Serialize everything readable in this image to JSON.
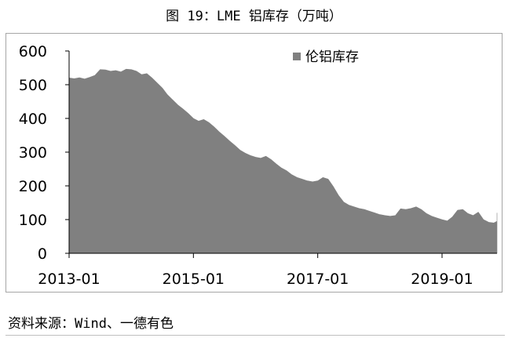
{
  "title": "图 19：LME 铝库存（万吨）",
  "source": "资料来源：Wind、一德有色",
  "chart_data": {
    "type": "area",
    "ylim": [
      0,
      600
    ],
    "yticks": [
      "0",
      "100",
      "200",
      "300",
      "400",
      "500",
      "600"
    ],
    "xtick_labels": [
      "2013-01",
      "2015-01",
      "2017-01",
      "2019-01"
    ],
    "xlim": [
      "2013-01",
      "2019-10"
    ],
    "grid": false,
    "legend_position": "top-right",
    "series": [
      {
        "name": "伦铝库存",
        "color": "#808080",
        "points": [
          [
            "2013-01",
            520
          ],
          [
            "2013-02",
            518
          ],
          [
            "2013-03",
            521
          ],
          [
            "2013-04",
            517
          ],
          [
            "2013-05",
            522
          ],
          [
            "2013-06",
            528
          ],
          [
            "2013-07",
            545
          ],
          [
            "2013-08",
            544
          ],
          [
            "2013-09",
            540
          ],
          [
            "2013-10",
            542
          ],
          [
            "2013-11",
            538
          ],
          [
            "2013-12",
            546
          ],
          [
            "2014-01",
            545
          ],
          [
            "2014-02",
            540
          ],
          [
            "2014-03",
            530
          ],
          [
            "2014-04",
            533
          ],
          [
            "2014-05",
            520
          ],
          [
            "2014-06",
            505
          ],
          [
            "2014-07",
            490
          ],
          [
            "2014-08",
            470
          ],
          [
            "2014-09",
            455
          ],
          [
            "2014-10",
            440
          ],
          [
            "2014-11",
            428
          ],
          [
            "2014-12",
            415
          ],
          [
            "2015-01",
            400
          ],
          [
            "2015-02",
            392
          ],
          [
            "2015-03",
            397
          ],
          [
            "2015-04",
            388
          ],
          [
            "2015-05",
            375
          ],
          [
            "2015-06",
            360
          ],
          [
            "2015-07",
            347
          ],
          [
            "2015-08",
            333
          ],
          [
            "2015-09",
            320
          ],
          [
            "2015-10",
            306
          ],
          [
            "2015-11",
            297
          ],
          [
            "2015-12",
            290
          ],
          [
            "2016-01",
            285
          ],
          [
            "2016-02",
            282
          ],
          [
            "2016-03",
            288
          ],
          [
            "2016-04",
            278
          ],
          [
            "2016-05",
            265
          ],
          [
            "2016-06",
            253
          ],
          [
            "2016-07",
            245
          ],
          [
            "2016-08",
            233
          ],
          [
            "2016-09",
            225
          ],
          [
            "2016-10",
            220
          ],
          [
            "2016-11",
            215
          ],
          [
            "2016-12",
            212
          ],
          [
            "2017-01",
            215
          ],
          [
            "2017-02",
            225
          ],
          [
            "2017-03",
            220
          ],
          [
            "2017-04",
            198
          ],
          [
            "2017-05",
            172
          ],
          [
            "2017-06",
            152
          ],
          [
            "2017-07",
            143
          ],
          [
            "2017-08",
            138
          ],
          [
            "2017-09",
            133
          ],
          [
            "2017-10",
            130
          ],
          [
            "2017-11",
            125
          ],
          [
            "2017-12",
            120
          ],
          [
            "2018-01",
            115
          ],
          [
            "2018-02",
            112
          ],
          [
            "2018-03",
            110
          ],
          [
            "2018-04",
            112
          ],
          [
            "2018-05",
            132
          ],
          [
            "2018-06",
            130
          ],
          [
            "2018-07",
            133
          ],
          [
            "2018-08",
            138
          ],
          [
            "2018-09",
            130
          ],
          [
            "2018-10",
            118
          ],
          [
            "2018-11",
            110
          ],
          [
            "2018-12",
            105
          ],
          [
            "2019-01",
            100
          ],
          [
            "2019-02",
            96
          ],
          [
            "2019-03",
            108
          ],
          [
            "2019-04",
            128
          ],
          [
            "2019-05",
            130
          ],
          [
            "2019-06",
            118
          ],
          [
            "2019-07",
            112
          ],
          [
            "2019-08",
            122
          ],
          [
            "2019-09",
            100
          ],
          [
            "2019-10",
            92
          ],
          [
            "2019-11",
            90
          ],
          [
            "2019-12",
            95
          ],
          [
            "2020-01",
            120
          ]
        ]
      }
    ]
  }
}
